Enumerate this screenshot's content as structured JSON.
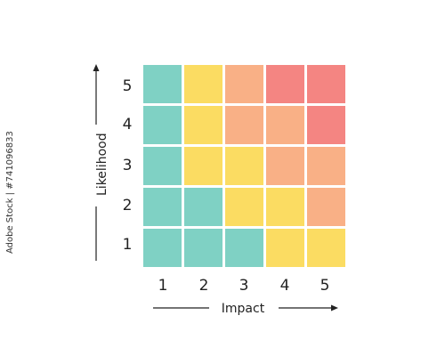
{
  "axes": {
    "y_label": "Likelihood",
    "x_label": "Impact",
    "y_ticks": [
      "5",
      "4",
      "3",
      "2",
      "1"
    ],
    "x_ticks": [
      "1",
      "2",
      "3",
      "4",
      "5"
    ]
  },
  "palette": {
    "teal": "#7fd1c4",
    "yellow": "#fbdc62",
    "light-orange": "#f9b086",
    "red": "#f48582"
  },
  "grid": [
    [
      "teal",
      "yellow",
      "light-orange",
      "red",
      "red"
    ],
    [
      "teal",
      "yellow",
      "light-orange",
      "light-orange",
      "red"
    ],
    [
      "teal",
      "yellow",
      "yellow",
      "light-orange",
      "light-orange"
    ],
    [
      "teal",
      "teal",
      "yellow",
      "yellow",
      "light-orange"
    ],
    [
      "teal",
      "teal",
      "teal",
      "yellow",
      "yellow"
    ]
  ],
  "watermark": "Adobe Stock | #741096833"
}
